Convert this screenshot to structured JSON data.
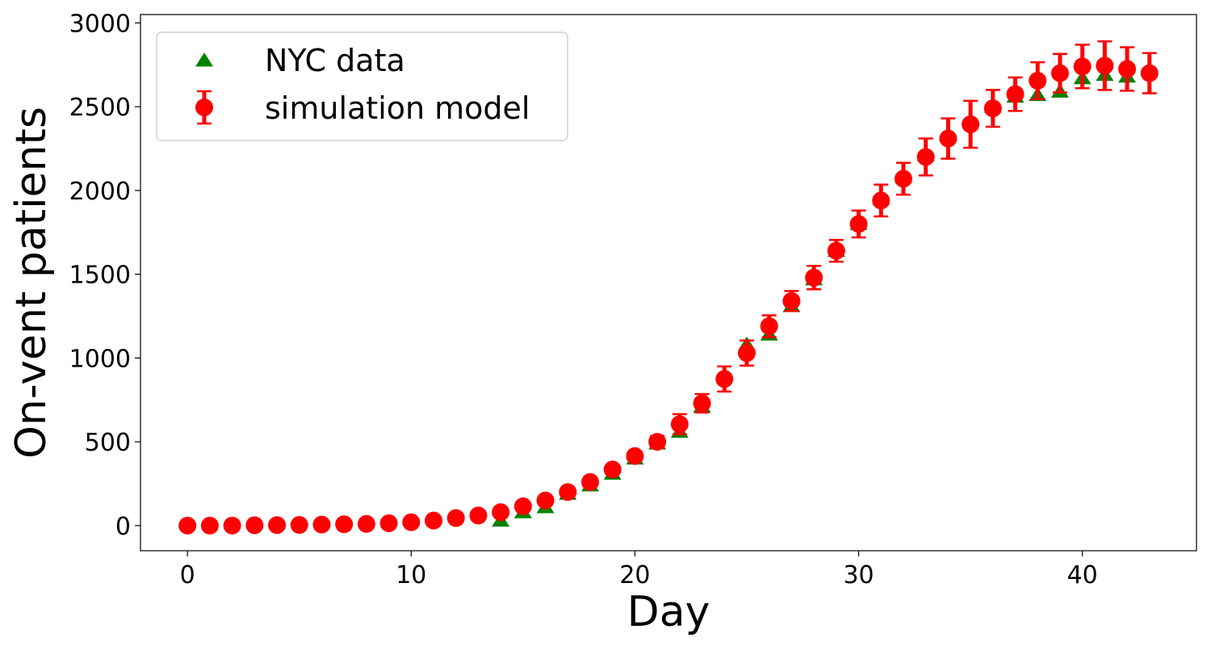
{
  "chart_data": {
    "type": "scatter",
    "xlabel": "Day",
    "ylabel": "On-vent patients",
    "xlim": [
      -2.1,
      45.1
    ],
    "ylim": [
      -150,
      3050
    ],
    "x_ticks": [
      0,
      10,
      20,
      30,
      40
    ],
    "y_ticks": [
      0,
      500,
      1000,
      1500,
      2000,
      2500,
      3000
    ],
    "grid": false,
    "legend_position": "top-left",
    "series": [
      {
        "name": "NYC data",
        "marker": "triangle",
        "color": "#008000",
        "x": [
          14,
          15,
          16,
          17,
          18,
          19,
          20,
          21,
          22,
          23,
          24,
          25,
          26,
          27,
          28,
          29,
          30,
          31,
          32,
          33,
          34,
          35,
          36,
          37,
          38,
          39,
          40,
          41,
          42
        ],
        "y": [
          30,
          80,
          110,
          190,
          240,
          310,
          400,
          490,
          560,
          710,
          900,
          1080,
          1140,
          1310,
          1470,
          1640,
          1800,
          1950,
          2080,
          2210,
          2330,
          2420,
          2500,
          2560,
          2570,
          2590,
          2670,
          2690,
          2680
        ]
      },
      {
        "name": "simulation model",
        "marker": "circle",
        "color": "#ff0000",
        "x": [
          0,
          1,
          2,
          3,
          4,
          5,
          6,
          7,
          8,
          9,
          10,
          11,
          12,
          13,
          14,
          15,
          16,
          17,
          18,
          19,
          20,
          21,
          22,
          23,
          24,
          25,
          26,
          27,
          28,
          29,
          30,
          31,
          32,
          33,
          34,
          35,
          36,
          37,
          38,
          39,
          40,
          41,
          42,
          43
        ],
        "y": [
          0,
          0,
          0,
          2,
          3,
          4,
          6,
          8,
          10,
          14,
          20,
          30,
          45,
          60,
          80,
          115,
          150,
          200,
          260,
          335,
          415,
          500,
          605,
          730,
          875,
          1030,
          1190,
          1340,
          1480,
          1640,
          1800,
          1940,
          2070,
          2200,
          2310,
          2395,
          2490,
          2575,
          2655,
          2700,
          2740,
          2745,
          2725,
          2700
        ],
        "err": [
          0,
          0,
          0,
          0,
          0,
          0,
          0,
          0,
          0,
          0,
          0,
          0,
          0,
          0,
          0,
          0,
          0,
          0,
          0,
          0,
          25,
          35,
          60,
          55,
          75,
          75,
          65,
          60,
          70,
          65,
          80,
          95,
          95,
          110,
          120,
          140,
          110,
          100,
          110,
          115,
          130,
          145,
          130,
          120
        ]
      }
    ]
  }
}
